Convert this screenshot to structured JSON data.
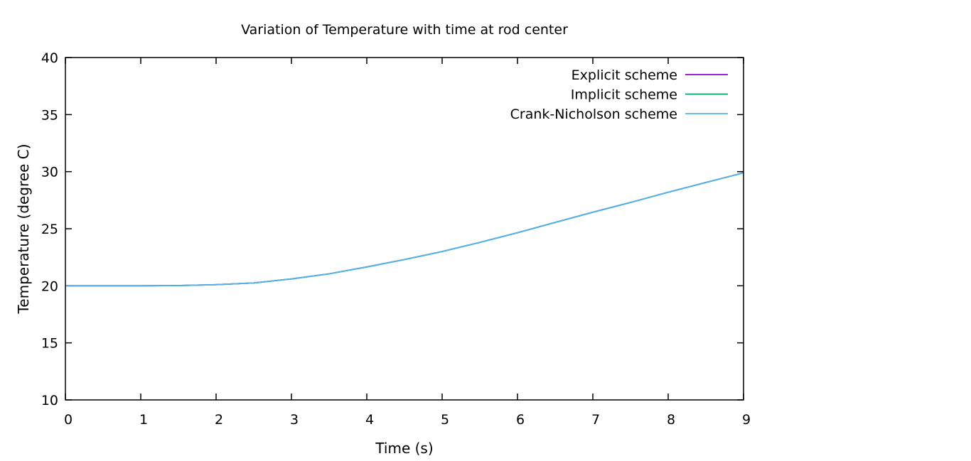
{
  "chart_data": {
    "type": "line",
    "title": "Variation of Temperature with time at rod center",
    "xlabel": "Time (s)",
    "ylabel": "Temperature (degree C)",
    "xlim": [
      0,
      9
    ],
    "ylim": [
      10,
      40
    ],
    "xticks": [
      0,
      1,
      2,
      3,
      4,
      5,
      6,
      7,
      8,
      9
    ],
    "yticks": [
      10,
      15,
      20,
      25,
      30,
      35,
      40
    ],
    "grid": false,
    "legend_position": "top-right",
    "x": [
      0,
      0.5,
      1,
      1.5,
      2,
      2.5,
      3,
      3.5,
      4,
      4.5,
      5,
      5.5,
      6,
      6.5,
      7,
      7.5,
      8,
      8.5,
      9
    ],
    "series": [
      {
        "name": "Explicit scheme",
        "color": "#9400d3",
        "values": [
          20.0,
          20.0,
          20.0,
          20.02,
          20.1,
          20.25,
          20.6,
          21.05,
          21.65,
          22.3,
          23.0,
          23.8,
          24.65,
          25.55,
          26.45,
          27.3,
          28.2,
          29.05,
          29.9
        ]
      },
      {
        "name": "Implicit scheme",
        "color": "#009e73",
        "values": [
          20.0,
          20.0,
          20.0,
          20.02,
          20.1,
          20.25,
          20.6,
          21.05,
          21.65,
          22.3,
          23.0,
          23.8,
          24.65,
          25.55,
          26.45,
          27.3,
          28.2,
          29.05,
          29.9
        ]
      },
      {
        "name": "Crank-Nicholson scheme",
        "color": "#56b4e9",
        "values": [
          20.0,
          20.0,
          20.0,
          20.02,
          20.1,
          20.25,
          20.6,
          21.05,
          21.65,
          22.3,
          23.0,
          23.8,
          24.65,
          25.55,
          26.45,
          27.3,
          28.2,
          29.05,
          29.9
        ]
      }
    ]
  }
}
